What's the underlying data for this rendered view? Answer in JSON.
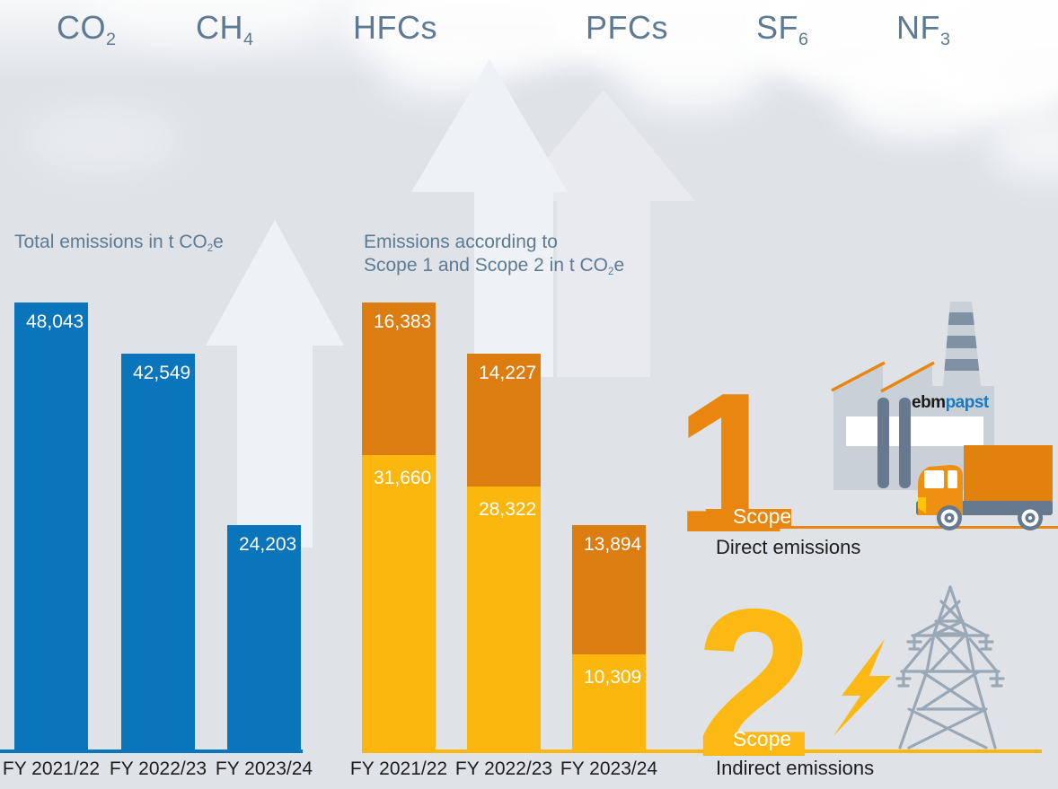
{
  "gases": [
    {
      "base": "CO",
      "sub": "2"
    },
    {
      "base": "CH",
      "sub": "4"
    },
    {
      "base": "HFCs",
      "sub": ""
    },
    {
      "base": "PFCs",
      "sub": ""
    },
    {
      "base": "SF",
      "sub": "6"
    },
    {
      "base": "NF",
      "sub": "3"
    }
  ],
  "left_chart_title": {
    "pre": "Total emissions in t CO",
    "sub": "2",
    "post": "e"
  },
  "right_chart_title": {
    "line1": "Emissions according to",
    "line2_pre": "Scope 1 and Scope 2 in t CO",
    "line2_sub": "2",
    "line2_post": "e"
  },
  "chart_data": [
    {
      "type": "bar",
      "title": "Total emissions in t CO2e",
      "categories": [
        "FY 2021/22",
        "FY 2022/23",
        "FY 2023/24"
      ],
      "values": [
        48043,
        42549,
        24203
      ],
      "bar_color": "#0a75ba",
      "ylim": [
        0,
        50000
      ],
      "value_labels_inside_bars": true
    },
    {
      "type": "bar",
      "stacked": true,
      "title": "Emissions according to Scope 1 and Scope 2 in t CO2e",
      "categories": [
        "FY 2021/22",
        "FY 2022/23",
        "FY 2023/24"
      ],
      "series": [
        {
          "name": "Scope 1 (Direct emissions)",
          "color": "#db7d10",
          "values": [
            16383,
            14227,
            13894
          ]
        },
        {
          "name": "Scope 2 (Indirect emissions)",
          "color": "#fbb70d",
          "values": [
            31660,
            28322,
            10309
          ]
        }
      ],
      "ylim": [
        0,
        50000
      ]
    }
  ],
  "scope1": {
    "number": "1",
    "label": "Scope",
    "description": "Direct emissions"
  },
  "scope2": {
    "number": "2",
    "label": "Scope",
    "description": "Indirect emissions"
  },
  "logo": {
    "part1": "ebm",
    "part2": "papst"
  },
  "colors": {
    "background": "#dfe3e8",
    "arrow": "#eef1f5",
    "blue": "#0a75ba",
    "orange": "#db7d10",
    "yellow": "#fbb70d",
    "accent_orange": "#e8860f",
    "accent_yellow": "#fcb813",
    "heading_text": "#5e7a93",
    "dark_text": "#1d1d1b",
    "icon_gray": "#9aa8b6"
  }
}
